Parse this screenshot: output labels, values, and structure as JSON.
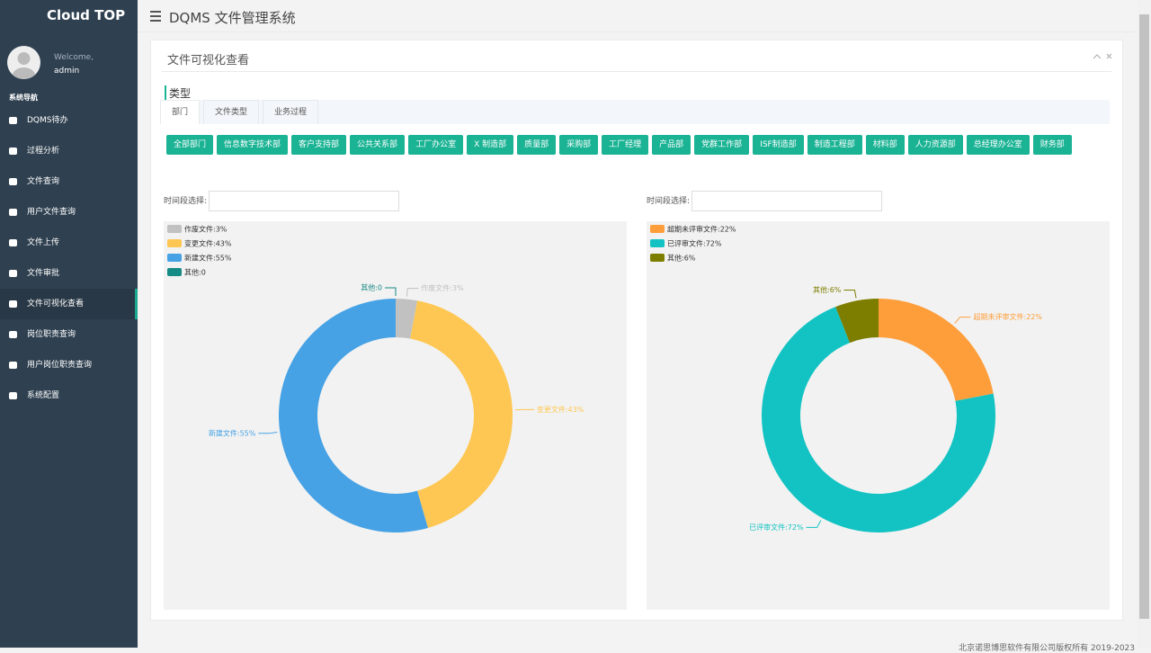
{
  "sidebar": {
    "brand": "Cloud TOP",
    "welcome": "Welcome,",
    "user": "admin",
    "section": "系统导航",
    "menu": [
      "DQMS待办",
      "过程分析",
      "文件查询",
      "用户文件查询",
      "文件上传",
      "文件审批",
      "文件可视化查看",
      "岗位职责查询",
      "用户岗位职责查询",
      "系统配置"
    ],
    "active": 6
  },
  "header": {
    "title": "DQMS 文件管理系统"
  },
  "panel": {
    "title": "文件可视化查看",
    "section": "类型",
    "tabs": [
      "部门",
      "文件类型",
      "业务过程"
    ],
    "departments": [
      "全部部门",
      "信息数字技术部",
      "客户支持部",
      "公共关系部",
      "工厂办公室",
      "X 制造部",
      "质量部",
      "采购部",
      "工厂经理",
      "产品部",
      "党群工作部",
      "ISF制造部",
      "制造工程部",
      "材料部",
      "人力资源部",
      "总经理办公室",
      "财务部"
    ]
  },
  "chart_data": [
    {
      "type": "donut",
      "filter_label": "时间段选择:",
      "values": [
        3,
        43,
        55,
        0
      ],
      "value_labels": [
        "作废文件:3%",
        "变更文件:43%",
        "新建文件:55%",
        "其他:0"
      ],
      "colors": [
        "#c1c1c1",
        "#fec753",
        "#46a2e5",
        "#168a84"
      ]
    },
    {
      "type": "donut",
      "filter_label": "时间段选择:",
      "values": [
        22,
        72,
        6
      ],
      "value_labels": [
        "超期未评审文件:22%",
        "已评审文件:72%",
        "其他:6%"
      ],
      "colors": [
        "#fe9e3b",
        "#13c3c3",
        "#7d7e00"
      ]
    }
  ],
  "footer": "北京诺思博思软件有限公司版权所有 2019-2023"
}
